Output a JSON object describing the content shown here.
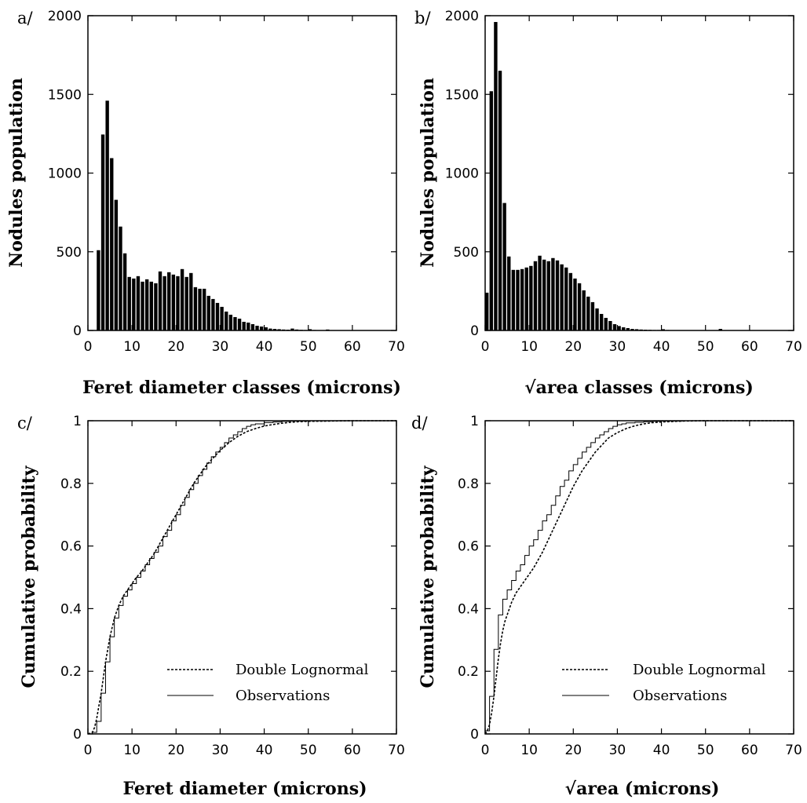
{
  "chart_data": [
    {
      "panel": "a/",
      "type": "bar",
      "xlabel": "Feret diameter classes (microns)",
      "ylabel": "Nodules population",
      "xlim": [
        0,
        70
      ],
      "ylim": [
        0,
        2000
      ],
      "xticks": [
        0,
        10,
        20,
        30,
        40,
        50,
        60,
        70
      ],
      "yticks": [
        0,
        500,
        1000,
        1500,
        2000
      ],
      "bin_width": 1,
      "x": [
        2,
        3,
        4,
        5,
        6,
        7,
        8,
        9,
        10,
        11,
        12,
        13,
        14,
        15,
        16,
        17,
        18,
        19,
        20,
        21,
        22,
        23,
        24,
        25,
        26,
        27,
        28,
        29,
        30,
        31,
        32,
        33,
        34,
        35,
        36,
        37,
        38,
        39,
        40,
        41,
        42,
        43,
        44,
        45,
        46,
        47,
        48,
        49,
        50,
        51,
        52,
        53,
        54,
        55,
        56,
        57,
        58,
        59,
        60,
        61,
        62,
        63,
        64,
        65,
        66,
        67,
        68,
        69
      ],
      "values": [
        510,
        1245,
        1460,
        1095,
        830,
        660,
        490,
        340,
        330,
        345,
        310,
        325,
        310,
        300,
        375,
        345,
        370,
        355,
        345,
        390,
        340,
        365,
        275,
        265,
        265,
        220,
        200,
        175,
        150,
        120,
        100,
        85,
        75,
        55,
        50,
        40,
        30,
        25,
        20,
        12,
        10,
        8,
        6,
        5,
        12,
        6,
        4,
        3,
        8,
        3,
        2,
        2,
        6,
        2,
        2,
        1,
        1,
        2,
        1,
        1,
        1,
        0,
        1,
        1,
        0,
        1,
        0,
        1
      ]
    },
    {
      "panel": "b/",
      "type": "bar",
      "xlabel": "√area classes (microns)",
      "ylabel": "Nodules population",
      "xlim": [
        0,
        70
      ],
      "ylim": [
        0,
        2000
      ],
      "xticks": [
        0,
        10,
        20,
        30,
        40,
        50,
        60,
        70
      ],
      "yticks": [
        0,
        500,
        1000,
        1500,
        2000
      ],
      "bin_width": 1,
      "x": [
        0,
        1,
        2,
        3,
        4,
        5,
        6,
        7,
        8,
        9,
        10,
        11,
        12,
        13,
        14,
        15,
        16,
        17,
        18,
        19,
        20,
        21,
        22,
        23,
        24,
        25,
        26,
        27,
        28,
        29,
        30,
        31,
        32,
        33,
        34,
        35,
        36,
        37,
        38,
        39,
        40,
        41,
        42,
        43,
        44,
        45,
        46,
        47,
        48,
        49,
        50,
        51,
        52,
        53,
        54,
        55,
        56,
        57,
        58,
        59,
        60,
        61,
        62,
        63,
        64,
        65,
        66,
        67,
        68,
        69
      ],
      "values": [
        240,
        1520,
        1960,
        1650,
        810,
        470,
        385,
        385,
        390,
        400,
        410,
        440,
        475,
        450,
        440,
        460,
        445,
        420,
        400,
        365,
        330,
        300,
        255,
        215,
        180,
        140,
        105,
        80,
        60,
        40,
        28,
        20,
        15,
        10,
        8,
        6,
        5,
        4,
        3,
        3,
        8,
        3,
        2,
        2,
        2,
        2,
        1,
        1,
        1,
        1,
        1,
        1,
        2,
        10,
        1,
        1,
        1,
        1,
        1,
        1,
        1,
        0,
        1,
        0,
        1,
        0,
        1,
        0,
        1,
        0
      ]
    },
    {
      "panel": "c/",
      "type": "line",
      "xlabel": "Feret diameter (microns)",
      "ylabel": "Cumulative probability",
      "xlim": [
        0,
        70
      ],
      "ylim": [
        0,
        1
      ],
      "xticks": [
        0,
        10,
        20,
        30,
        40,
        50,
        60,
        70
      ],
      "yticks": [
        0,
        0.2,
        0.4,
        0.6,
        0.8,
        1
      ],
      "legend_position": "bottom-right",
      "series": [
        {
          "name": "Double Lognormal",
          "style": "dashed",
          "x": [
            0,
            1,
            1.5,
            2,
            2.5,
            3,
            3.5,
            4,
            4.5,
            5,
            5.5,
            6,
            6.5,
            7,
            8,
            9,
            10,
            11,
            12,
            13,
            14,
            15,
            16,
            17,
            18,
            19,
            20,
            21,
            22,
            23,
            24,
            25,
            26,
            27,
            28,
            29,
            30,
            32,
            34,
            36,
            38,
            40,
            42,
            44,
            46,
            48,
            50,
            55,
            60,
            65,
            70
          ],
          "y": [
            0,
            0.005,
            0.02,
            0.05,
            0.09,
            0.13,
            0.18,
            0.23,
            0.27,
            0.31,
            0.34,
            0.37,
            0.39,
            0.41,
            0.44,
            0.46,
            0.48,
            0.5,
            0.515,
            0.535,
            0.555,
            0.575,
            0.6,
            0.625,
            0.65,
            0.675,
            0.7,
            0.725,
            0.75,
            0.775,
            0.8,
            0.82,
            0.84,
            0.86,
            0.875,
            0.89,
            0.905,
            0.93,
            0.95,
            0.965,
            0.975,
            0.983,
            0.988,
            0.992,
            0.995,
            0.997,
            0.998,
            0.999,
            1,
            1,
            1
          ]
        },
        {
          "name": "Observations",
          "style": "step",
          "x": [
            0,
            1,
            2,
            3,
            4,
            5,
            6,
            7,
            8,
            9,
            10,
            11,
            12,
            13,
            14,
            15,
            16,
            17,
            18,
            19,
            20,
            21,
            22,
            23,
            24,
            25,
            26,
            27,
            28,
            29,
            30,
            31,
            32,
            33,
            34,
            35,
            36,
            37,
            38,
            40,
            42,
            44,
            46,
            50,
            55,
            60,
            70
          ],
          "y": [
            0,
            0.005,
            0.04,
            0.13,
            0.23,
            0.31,
            0.37,
            0.41,
            0.44,
            0.46,
            0.48,
            0.5,
            0.52,
            0.54,
            0.56,
            0.58,
            0.6,
            0.63,
            0.65,
            0.68,
            0.7,
            0.73,
            0.755,
            0.78,
            0.8,
            0.825,
            0.845,
            0.865,
            0.885,
            0.9,
            0.915,
            0.93,
            0.945,
            0.955,
            0.965,
            0.975,
            0.982,
            0.987,
            0.99,
            0.994,
            0.996,
            0.998,
            0.999,
            1,
            1,
            1,
            1
          ]
        }
      ]
    },
    {
      "panel": "d/",
      "type": "line",
      "xlabel": "√area (microns)",
      "ylabel": "Cumulative probability",
      "xlim": [
        0,
        70
      ],
      "ylim": [
        0,
        1
      ],
      "xticks": [
        0,
        10,
        20,
        30,
        40,
        50,
        60,
        70
      ],
      "yticks": [
        0,
        0.2,
        0.4,
        0.6,
        0.8,
        1
      ],
      "legend_position": "bottom-right",
      "series": [
        {
          "name": "Double Lognormal",
          "style": "dashed",
          "x": [
            0,
            0.5,
            1,
            1.5,
            2,
            2.5,
            3,
            3.5,
            4,
            4.5,
            5,
            6,
            7,
            8,
            9,
            10,
            11,
            12,
            13,
            14,
            15,
            16,
            17,
            18,
            19,
            20,
            21,
            22,
            23,
            24,
            25,
            26,
            27,
            28,
            30,
            32,
            34,
            36,
            38,
            40,
            45,
            50,
            55,
            60,
            70
          ],
          "y": [
            0,
            0.01,
            0.03,
            0.07,
            0.12,
            0.18,
            0.24,
            0.29,
            0.33,
            0.36,
            0.38,
            0.42,
            0.45,
            0.47,
            0.49,
            0.51,
            0.53,
            0.555,
            0.58,
            0.61,
            0.64,
            0.67,
            0.7,
            0.73,
            0.76,
            0.79,
            0.815,
            0.84,
            0.86,
            0.88,
            0.9,
            0.915,
            0.93,
            0.945,
            0.962,
            0.975,
            0.984,
            0.99,
            0.994,
            0.996,
            0.999,
            1,
            1,
            1,
            1
          ]
        },
        {
          "name": "Observations",
          "style": "step",
          "x": [
            0,
            1,
            2,
            3,
            4,
            5,
            6,
            7,
            8,
            9,
            10,
            11,
            12,
            13,
            14,
            15,
            16,
            17,
            18,
            19,
            20,
            21,
            22,
            23,
            24,
            25,
            26,
            27,
            28,
            29,
            30,
            31,
            32,
            34,
            36,
            38,
            40,
            45,
            50,
            55,
            60,
            70
          ],
          "y": [
            0.01,
            0.12,
            0.27,
            0.38,
            0.43,
            0.46,
            0.49,
            0.52,
            0.54,
            0.57,
            0.6,
            0.62,
            0.65,
            0.68,
            0.7,
            0.73,
            0.76,
            0.79,
            0.81,
            0.84,
            0.86,
            0.88,
            0.9,
            0.915,
            0.93,
            0.945,
            0.955,
            0.965,
            0.975,
            0.982,
            0.987,
            0.99,
            0.993,
            0.995,
            0.997,
            0.998,
            0.999,
            1,
            1,
            1,
            1,
            1
          ]
        }
      ]
    }
  ]
}
